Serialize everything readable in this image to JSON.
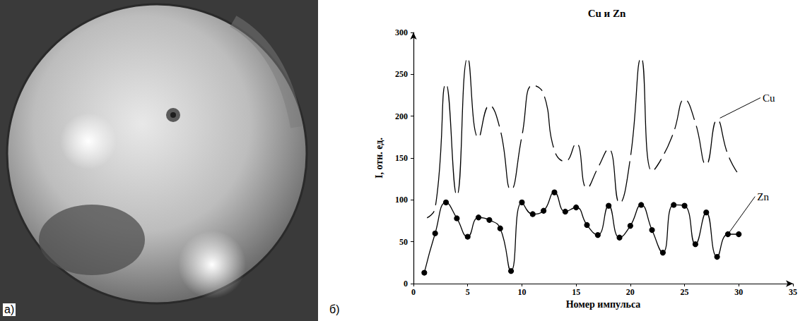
{
  "panel_labels": [
    "а)",
    "б)"
  ],
  "chart_data": {
    "type": "line",
    "title": "Cu и Zn",
    "xlabel": "Номер импульса",
    "ylabel": "I, отн. ед.",
    "x": [
      1,
      2,
      3,
      4,
      5,
      6,
      7,
      8,
      9,
      10,
      11,
      12,
      13,
      14,
      15,
      16,
      17,
      18,
      19,
      20,
      21,
      22,
      23,
      24,
      25,
      26,
      27,
      28,
      29,
      30
    ],
    "series": [
      {
        "name": "Cu",
        "color": "#000000",
        "marker": "open circle",
        "values": [
          77,
          90,
          239,
          105,
          270,
          174,
          213,
          184,
          112,
          176,
          237,
          227,
          159,
          146,
          168,
          114,
          138,
          161,
          96,
          150,
          270,
          134,
          152,
          181,
          220,
          192,
          142,
          196,
          154,
          130
        ]
      },
      {
        "name": "Zn",
        "color": "#000000",
        "marker": "filled circle",
        "values": [
          13,
          60,
          97,
          78,
          56,
          79,
          76,
          66,
          15,
          97,
          83,
          87,
          109,
          86,
          91,
          70,
          58,
          93,
          55,
          69,
          94,
          64,
          37,
          94,
          93,
          47,
          85,
          32,
          59,
          59
        ]
      }
    ],
    "xlim": [
      0,
      35
    ],
    "xticks": [
      0,
      5,
      10,
      15,
      20,
      25,
      30,
      35
    ],
    "ylim": [
      0,
      300
    ],
    "yticks": [
      0,
      50,
      100,
      150,
      200,
      250,
      300
    ],
    "grid": false,
    "annotations": [
      {
        "text": "Cu",
        "x": 32,
        "y": 222,
        "point": [
          28,
          196
        ]
      },
      {
        "text": "Zn",
        "x": 31.5,
        "y": 104,
        "point": [
          29,
          59
        ]
      }
    ]
  }
}
